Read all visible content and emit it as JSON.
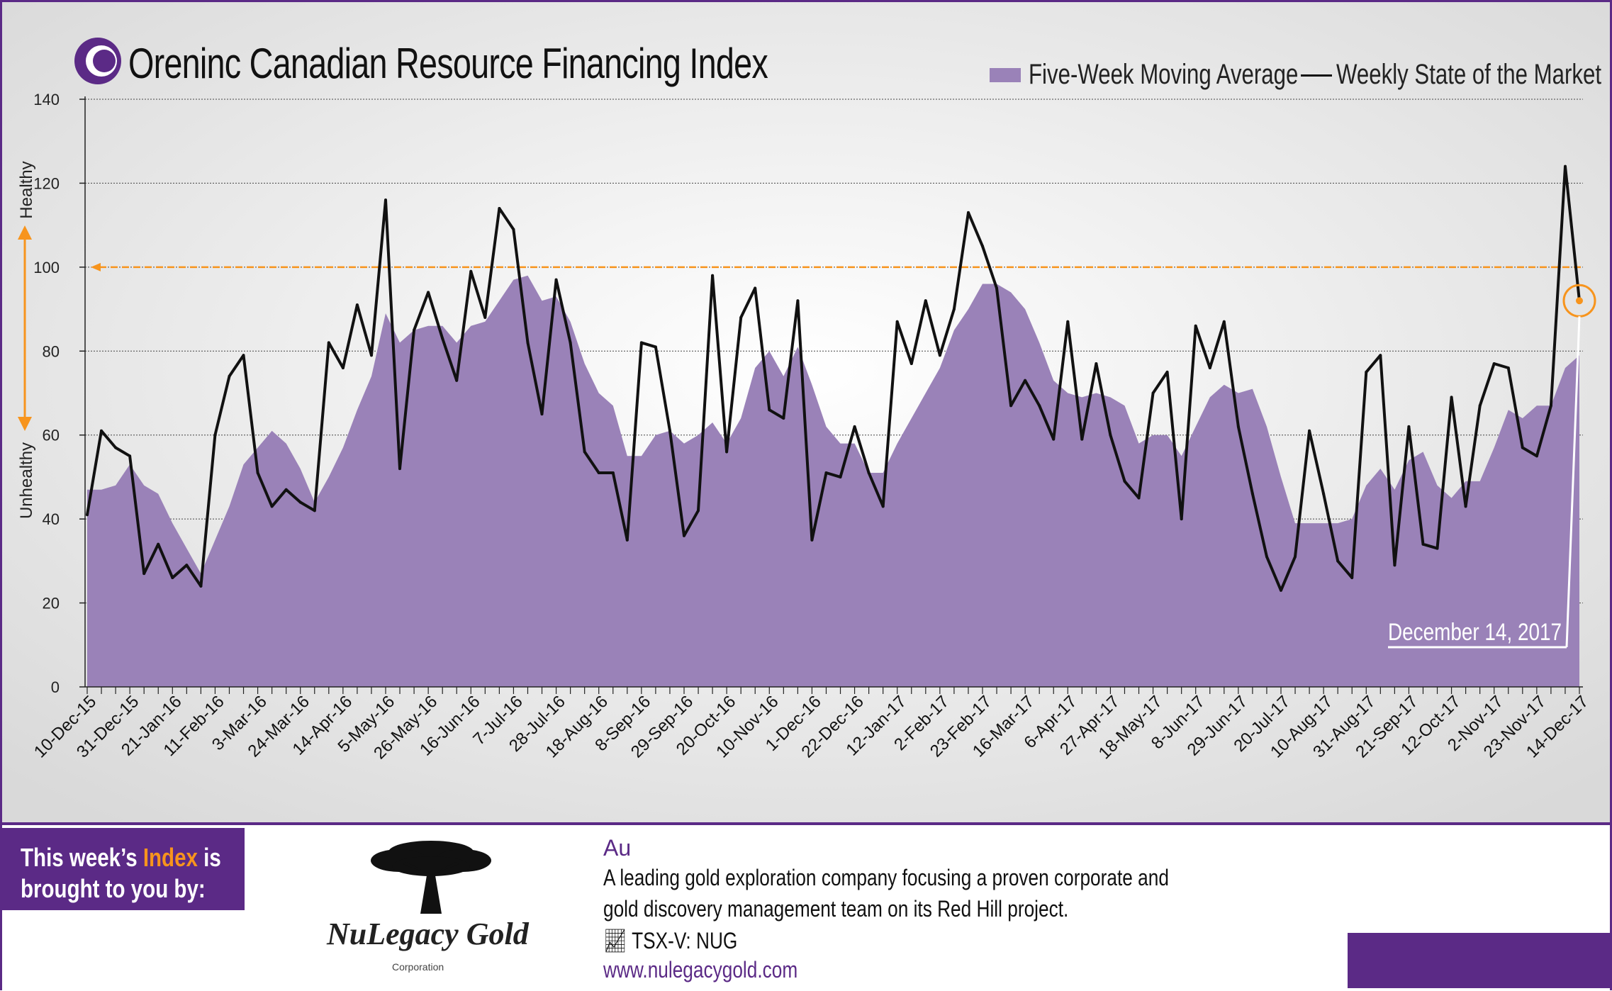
{
  "brand": "Oreninc",
  "title": "Canadian Resource Financing Index",
  "legend": {
    "moving_average": "Five-Week Moving Average",
    "weekly": "Weekly State of the Market"
  },
  "axis": {
    "healthy": "Healthy",
    "unhealthy": "Unhealthy"
  },
  "callout": "December 14, 2017",
  "colors": {
    "area": "#9a82b8",
    "line": "#111111",
    "threshold": "#f7941d",
    "brand": "#5b2a86"
  },
  "chart_data": {
    "type": "line",
    "ylim": [
      0,
      140
    ],
    "yticks": [
      0,
      20,
      40,
      60,
      80,
      100,
      120,
      140
    ],
    "threshold": 100,
    "x_tick_labels": [
      "10-Dec-15",
      "31-Dec-15",
      "21-Jan-16",
      "11-Feb-16",
      "3-Mar-16",
      "24-Mar-16",
      "14-Apr-16",
      "5-May-16",
      "26-May-16",
      "16-Jun-16",
      "7-Jul-16",
      "28-Jul-16",
      "18-Aug-16",
      "8-Sep-16",
      "29-Sep-16",
      "20-Oct-16",
      "10-Nov-16",
      "1-Dec-16",
      "22-Dec-16",
      "12-Jan-17",
      "2-Feb-17",
      "23-Feb-17",
      "16-Mar-17",
      "6-Apr-17",
      "27-Apr-17",
      "18-May-17",
      "8-Jun-17",
      "29-Jun-17",
      "20-Jul-17",
      "10-Aug-17",
      "31-Aug-17",
      "21-Sep-17",
      "12-Oct-17",
      "2-Nov-17",
      "23-Nov-17",
      "14-Dec-17"
    ],
    "series": [
      {
        "name": "Weekly State of the Market",
        "values": [
          41,
          61,
          57,
          55,
          27,
          34,
          26,
          29,
          24,
          60,
          74,
          79,
          51,
          43,
          47,
          44,
          42,
          82,
          76,
          91,
          79,
          116,
          52,
          85,
          94,
          83,
          73,
          99,
          88,
          114,
          109,
          82,
          65,
          97,
          82,
          56,
          51,
          51,
          35,
          82,
          81,
          61,
          36,
          42,
          98,
          56,
          88,
          95,
          66,
          64,
          92,
          35,
          51,
          50,
          62,
          51,
          43,
          87,
          77,
          92,
          79,
          90,
          113,
          105,
          95,
          67,
          73,
          67,
          59,
          87,
          59,
          77,
          60,
          49,
          45,
          70,
          75,
          40,
          86,
          76,
          87,
          62,
          46,
          31,
          23,
          31,
          61,
          46,
          30,
          26,
          75,
          79,
          29,
          62,
          34,
          33,
          69,
          43,
          67,
          77,
          76,
          57,
          55,
          67,
          124,
          92
        ]
      },
      {
        "name": "Five-Week Moving Average",
        "values": [
          47,
          47,
          48,
          53,
          48,
          46,
          39,
          33,
          27,
          35,
          43,
          53,
          57,
          61,
          58,
          52,
          44,
          50,
          57,
          66,
          74,
          89,
          82,
          85,
          86,
          86,
          82,
          86,
          87,
          92,
          97,
          98,
          92,
          93,
          87,
          77,
          70,
          67,
          55,
          55,
          60,
          61,
          58,
          60,
          63,
          58,
          64,
          76,
          80,
          74,
          81,
          72,
          62,
          58,
          58,
          51,
          51,
          58,
          64,
          70,
          76,
          85,
          90,
          96,
          96,
          94,
          90,
          82,
          73,
          70,
          69,
          70,
          69,
          67,
          58,
          60,
          60,
          55,
          62,
          69,
          72,
          70,
          71,
          62,
          50,
          39,
          39,
          39,
          39,
          40,
          48,
          52,
          47,
          54,
          56,
          48,
          45,
          49,
          49,
          57,
          66,
          64,
          67,
          67,
          76,
          79
        ]
      }
    ]
  },
  "sponsor": {
    "heading_pre": "This week’s ",
    "heading_hl": "Index",
    "heading_post": " is",
    "heading_line2": "brought to you by:",
    "company": "NuLegacy Gold",
    "company_sub": "Corporation",
    "symbol": "Au",
    "desc_line1": "A leading gold exploration company focusing a proven corporate and",
    "desc_line2": "gold discovery management team on its Red Hill project.",
    "ticker": "TSX-V:  NUG",
    "website": "www.nulegacygold.com"
  }
}
